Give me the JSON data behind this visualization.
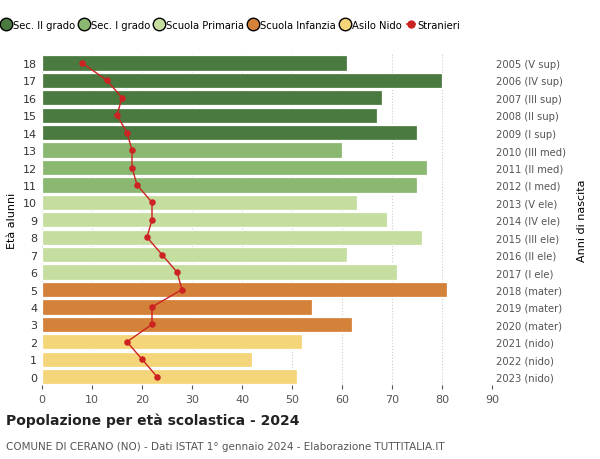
{
  "ages": [
    0,
    1,
    2,
    3,
    4,
    5,
    6,
    7,
    8,
    9,
    10,
    11,
    12,
    13,
    14,
    15,
    16,
    17,
    18
  ],
  "bar_values": [
    51,
    42,
    52,
    62,
    54,
    81,
    71,
    61,
    76,
    69,
    63,
    75,
    77,
    60,
    75,
    67,
    68,
    80,
    61
  ],
  "bar_colors": [
    "#f5d57a",
    "#f5d57a",
    "#f5d57a",
    "#d4813a",
    "#d4813a",
    "#d4813a",
    "#c5dea0",
    "#c5dea0",
    "#c5dea0",
    "#c5dea0",
    "#c5dea0",
    "#8ab870",
    "#8ab870",
    "#8ab870",
    "#4a7a40",
    "#4a7a40",
    "#4a7a40",
    "#4a7a40",
    "#4a7a40"
  ],
  "stranieri": [
    23,
    20,
    17,
    22,
    22,
    28,
    27,
    24,
    21,
    22,
    22,
    19,
    18,
    18,
    17,
    15,
    16,
    13,
    8
  ],
  "right_labels": [
    "2023 (nido)",
    "2022 (nido)",
    "2021 (nido)",
    "2020 (mater)",
    "2019 (mater)",
    "2018 (mater)",
    "2017 (I ele)",
    "2016 (II ele)",
    "2015 (III ele)",
    "2014 (IV ele)",
    "2013 (V ele)",
    "2012 (I med)",
    "2011 (II med)",
    "2010 (III med)",
    "2009 (I sup)",
    "2008 (II sup)",
    "2007 (III sup)",
    "2006 (IV sup)",
    "2005 (V sup)"
  ],
  "legend_labels": [
    "Sec. II grado",
    "Sec. I grado",
    "Scuola Primaria",
    "Scuola Infanzia",
    "Asilo Nido",
    "Stranieri"
  ],
  "legend_colors": [
    "#4a7a40",
    "#8ab870",
    "#c5dea0",
    "#d4813a",
    "#f5d57a",
    "#cc2222"
  ],
  "ylabel_left": "Età alunni",
  "ylabel_right": "Anni di nascita",
  "title": "Popolazione per età scolastica - 2024",
  "subtitle": "COMUNE DI CERANO (NO) - Dati ISTAT 1° gennaio 2024 - Elaborazione TUTTITALIA.IT",
  "xlim": [
    0,
    90
  ],
  "xticks": [
    0,
    10,
    20,
    30,
    40,
    50,
    60,
    70,
    80,
    90
  ],
  "background_color": "#ffffff",
  "grid_color": "#cccccc"
}
